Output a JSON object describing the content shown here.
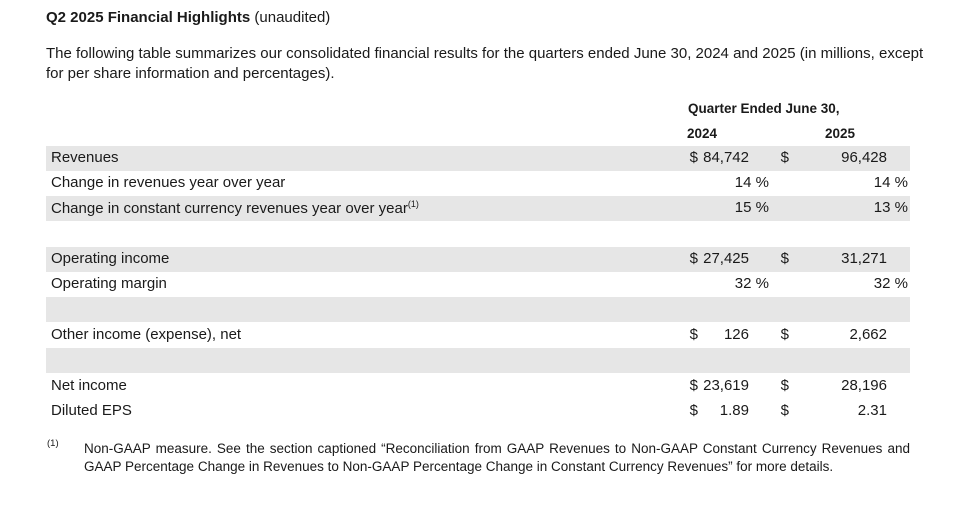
{
  "heading": {
    "bold": "Q2 2025 Financial Highlights",
    "rest": " (unaudited)"
  },
  "intro": "The following table summarizes our consolidated financial results for the quarters ended June 30, 2024 and 2025 (in millions, except for per share information and percentages).",
  "table": {
    "period_header": "Quarter Ended June 30,",
    "year1": "2024",
    "year2": "2025",
    "rows": {
      "revenues": {
        "label": "Revenues",
        "cur1": "$",
        "v1": "84,742",
        "cur2": "$",
        "v2": "96,428"
      },
      "rev_change": {
        "label": "Change in revenues year over year",
        "v1": "14 %",
        "v2": "14 %"
      },
      "cc_change": {
        "label": "Change in constant currency revenues year over year",
        "sup": "(1)",
        "v1": "15 %",
        "v2": "13 %"
      },
      "op_income": {
        "label": "Operating income",
        "cur1": "$",
        "v1": "27,425",
        "cur2": "$",
        "v2": "31,271"
      },
      "op_margin": {
        "label": "Operating margin",
        "v1": "32 %",
        "v2": "32 %"
      },
      "other_income": {
        "label": "Other income (expense), net",
        "cur1": "$",
        "v1": "126",
        "cur2": "$",
        "v2": "2,662"
      },
      "net_income": {
        "label": "Net income",
        "cur1": "$",
        "v1": "23,619",
        "cur2": "$",
        "v2": "28,196"
      },
      "eps": {
        "label": "Diluted EPS",
        "cur1": "$",
        "v1": "1.89",
        "cur2": "$",
        "v2": "2.31"
      }
    }
  },
  "footnote": {
    "mark": "(1)",
    "text": "Non-GAAP measure. See the section captioned “Reconciliation from GAAP Revenues to Non-GAAP Constant Currency Revenues and GAAP Percentage Change in Revenues to Non-GAAP Percentage Change in Constant Currency Revenues” for more details."
  }
}
